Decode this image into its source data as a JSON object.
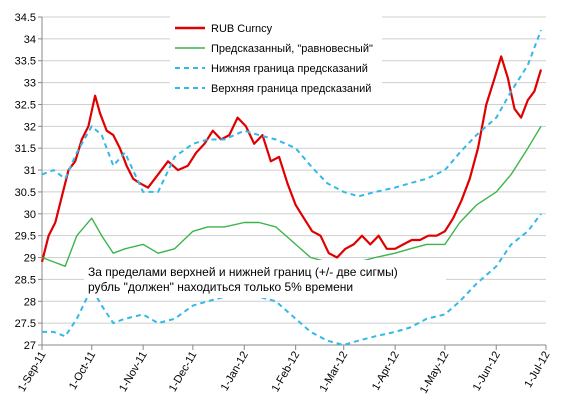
{
  "chart_data": {
    "type": "line",
    "title": "",
    "xlabel": "",
    "ylabel": "",
    "ylim": [
      27,
      34.5
    ],
    "yticks": [
      27,
      27.5,
      28,
      28.5,
      29,
      29.5,
      30,
      30.5,
      31,
      31.5,
      32,
      32.5,
      33,
      33.5,
      34,
      34.5
    ],
    "ytick_labels": [
      "27",
      "27.5",
      "28",
      "28.5",
      "29",
      "29.5",
      "30",
      "30.5",
      "31",
      "31.5",
      "32",
      "32.5",
      "33",
      "33.5",
      "34",
      "34.5"
    ],
    "x_ticks": [
      "2011-09-01",
      "2011-10-01",
      "2011-11-01",
      "2011-12-01",
      "2012-01-01",
      "2012-02-01",
      "2012-03-01",
      "2012-04-01",
      "2012-05-01",
      "2012-06-01",
      "2012-07-01"
    ],
    "xtick_labels": [
      "1-Sep-11",
      "1-Oct-11",
      "1-Nov-11",
      "1-Dec-11",
      "1-Jan-12",
      "1-Feb-12",
      "1-Mar-12",
      "1-Apr-12",
      "1-May-12",
      "1-Jun-12",
      "1-Jul-12"
    ],
    "xlim": [
      "2011-09-01",
      "2012-07-01"
    ],
    "grid": true,
    "legend_position": "top-right",
    "annotation": [
      "За пределами верхней и нижней границ (+/- две сигмы)",
      "рубль \"должен\" находиться только 5% времени"
    ],
    "series": [
      {
        "name": "RUB Curncy",
        "color": "#e00000",
        "style": "solid",
        "x": [
          "2011-09-01",
          "2011-09-05",
          "2011-09-09",
          "2011-09-13",
          "2011-09-17",
          "2011-09-21",
          "2011-09-25",
          "2011-09-29",
          "2011-10-03",
          "2011-10-06",
          "2011-10-10",
          "2011-10-14",
          "2011-10-18",
          "2011-10-22",
          "2011-10-26",
          "2011-10-30",
          "2011-11-04",
          "2011-11-10",
          "2011-11-16",
          "2011-11-22",
          "2011-11-28",
          "2011-12-03",
          "2011-12-08",
          "2011-12-13",
          "2011-12-18",
          "2011-12-23",
          "2011-12-28",
          "2012-01-02",
          "2012-01-07",
          "2012-01-12",
          "2012-01-17",
          "2012-01-22",
          "2012-01-27",
          "2012-02-01",
          "2012-02-06",
          "2012-02-11",
          "2012-02-16",
          "2012-02-21",
          "2012-02-26",
          "2012-03-02",
          "2012-03-07",
          "2012-03-12",
          "2012-03-17",
          "2012-03-22",
          "2012-03-27",
          "2012-04-01",
          "2012-04-06",
          "2012-04-11",
          "2012-04-16",
          "2012-04-21",
          "2012-04-26",
          "2012-05-01",
          "2012-05-06",
          "2012-05-11",
          "2012-05-16",
          "2012-05-21",
          "2012-05-26",
          "2012-05-31",
          "2012-06-04",
          "2012-06-08",
          "2012-06-12",
          "2012-06-16",
          "2012-06-20",
          "2012-06-24",
          "2012-06-28"
        ],
        "y": [
          28.9,
          29.5,
          29.8,
          30.4,
          31.0,
          31.2,
          31.7,
          32.0,
          32.7,
          32.3,
          31.9,
          31.8,
          31.5,
          31.1,
          30.8,
          30.7,
          30.6,
          30.9,
          31.2,
          31.0,
          31.1,
          31.4,
          31.6,
          31.9,
          31.7,
          31.8,
          32.2,
          32.0,
          31.6,
          31.8,
          31.2,
          31.3,
          30.7,
          30.2,
          29.9,
          29.6,
          29.5,
          29.1,
          29.0,
          29.2,
          29.3,
          29.5,
          29.3,
          29.5,
          29.2,
          29.2,
          29.3,
          29.4,
          29.4,
          29.5,
          29.5,
          29.6,
          29.9,
          30.3,
          30.8,
          31.5,
          32.5,
          33.1,
          33.6,
          33.1,
          32.4,
          32.2,
          32.6,
          32.8,
          33.3
        ]
      },
      {
        "name": "Предсказанный, \"равновесный\"",
        "color": "#3cb44b",
        "style": "solid",
        "x": [
          "2011-09-01",
          "2011-09-08",
          "2011-09-15",
          "2011-09-22",
          "2011-10-01",
          "2011-10-07",
          "2011-10-14",
          "2011-10-21",
          "2011-11-01",
          "2011-11-10",
          "2011-11-20",
          "2011-12-01",
          "2011-12-10",
          "2011-12-20",
          "2012-01-01",
          "2012-01-10",
          "2012-01-20",
          "2012-02-01",
          "2012-02-10",
          "2012-02-20",
          "2012-03-01",
          "2012-03-10",
          "2012-03-20",
          "2012-04-01",
          "2012-04-10",
          "2012-04-20",
          "2012-05-01",
          "2012-05-10",
          "2012-05-20",
          "2012-06-01",
          "2012-06-10",
          "2012-06-20",
          "2012-06-28"
        ],
        "y": [
          29.0,
          28.9,
          28.8,
          29.5,
          29.9,
          29.5,
          29.1,
          29.2,
          29.3,
          29.1,
          29.2,
          29.6,
          29.7,
          29.7,
          29.8,
          29.8,
          29.7,
          29.3,
          29.0,
          28.9,
          28.9,
          28.9,
          29.0,
          29.1,
          29.2,
          29.3,
          29.3,
          29.8,
          30.2,
          30.5,
          30.9,
          31.5,
          32.0
        ]
      },
      {
        "name": "Нижняя граница предсказаний",
        "color": "#33b9e8",
        "style": "dashed",
        "x": [
          "2011-09-01",
          "2011-09-08",
          "2011-09-15",
          "2011-09-22",
          "2011-10-01",
          "2011-10-07",
          "2011-10-14",
          "2011-10-21",
          "2011-11-01",
          "2011-11-10",
          "2011-11-20",
          "2011-12-01",
          "2011-12-10",
          "2011-12-20",
          "2012-01-01",
          "2012-01-10",
          "2012-01-20",
          "2012-02-01",
          "2012-02-10",
          "2012-02-20",
          "2012-03-01",
          "2012-03-10",
          "2012-03-20",
          "2012-04-01",
          "2012-04-10",
          "2012-04-20",
          "2012-05-01",
          "2012-05-10",
          "2012-05-20",
          "2012-06-01",
          "2012-06-10",
          "2012-06-20",
          "2012-06-28"
        ],
        "y": [
          27.3,
          27.3,
          27.2,
          27.6,
          28.3,
          27.9,
          27.5,
          27.6,
          27.7,
          27.5,
          27.6,
          27.9,
          28.0,
          28.1,
          28.2,
          28.1,
          28.0,
          27.6,
          27.3,
          27.1,
          27.0,
          27.1,
          27.2,
          27.3,
          27.4,
          27.6,
          27.7,
          28.0,
          28.4,
          28.8,
          29.3,
          29.6,
          30.0
        ]
      },
      {
        "name": "Верхняя граница предсказаний",
        "color": "#33b9e8",
        "style": "dashed",
        "x": [
          "2011-09-01",
          "2011-09-08",
          "2011-09-15",
          "2011-09-22",
          "2011-10-01",
          "2011-10-07",
          "2011-10-14",
          "2011-10-21",
          "2011-11-01",
          "2011-11-10",
          "2011-11-20",
          "2011-12-01",
          "2011-12-10",
          "2011-12-20",
          "2012-01-01",
          "2012-01-10",
          "2012-01-20",
          "2012-02-01",
          "2012-02-10",
          "2012-02-20",
          "2012-03-01",
          "2012-03-10",
          "2012-03-20",
          "2012-04-01",
          "2012-04-10",
          "2012-04-20",
          "2012-05-01",
          "2012-05-10",
          "2012-05-20",
          "2012-06-01",
          "2012-06-10",
          "2012-06-20",
          "2012-06-28"
        ],
        "y": [
          30.9,
          31.0,
          30.8,
          31.4,
          32.0,
          31.8,
          31.1,
          31.4,
          30.5,
          30.5,
          31.3,
          31.6,
          31.7,
          31.7,
          31.9,
          31.8,
          31.7,
          31.5,
          31.1,
          30.7,
          30.5,
          30.4,
          30.5,
          30.6,
          30.7,
          30.8,
          31.0,
          31.4,
          31.8,
          32.2,
          32.8,
          33.4,
          34.2
        ]
      }
    ]
  }
}
